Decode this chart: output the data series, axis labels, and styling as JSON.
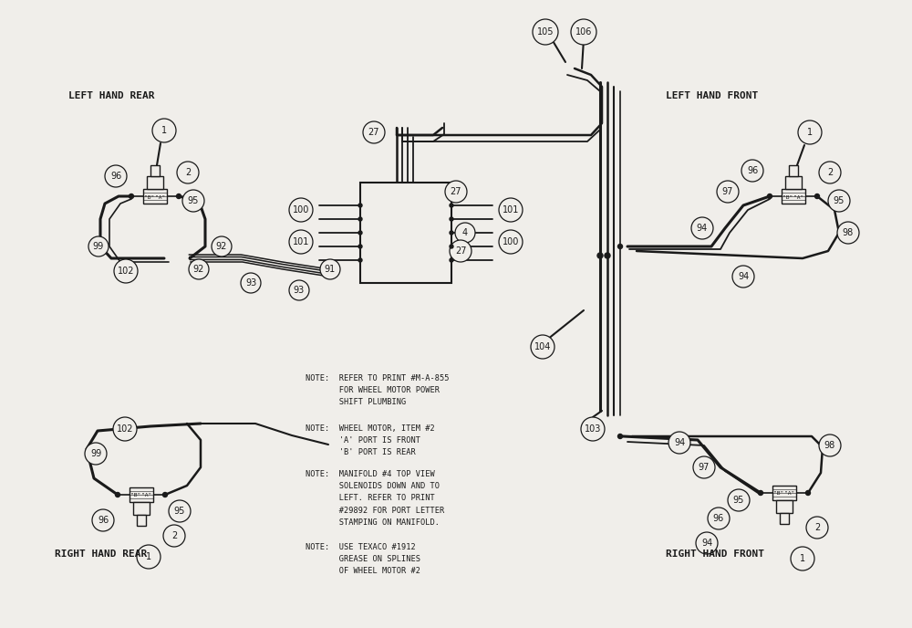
{
  "bg_color": "#f0eeea",
  "line_color": "#1a1a1a",
  "notes": [
    "NOTE:  REFER TO PRINT #M-A-855\n        FOR WHEEL MOTOR POWER\n        SHIFT PLUMBING",
    "NOTE:  WHEEL MOTOR, ITEM #2\n        'A' PORT IS FRONT\n        'B' PORT IS REAR",
    "NOTE:  MANIFOLD #4 TOP VIEW\n        SOLENOIDS DOWN AND TO\n        LEFT. REFER TO PRINT\n        #29892 FOR PORT LETTER\n        STAMPING ON MANIFOLD.",
    "NOTE:  USE TEXACO #1912\n        GREASE ON SPLINES\n        OF WHEEL MOTOR #2"
  ]
}
